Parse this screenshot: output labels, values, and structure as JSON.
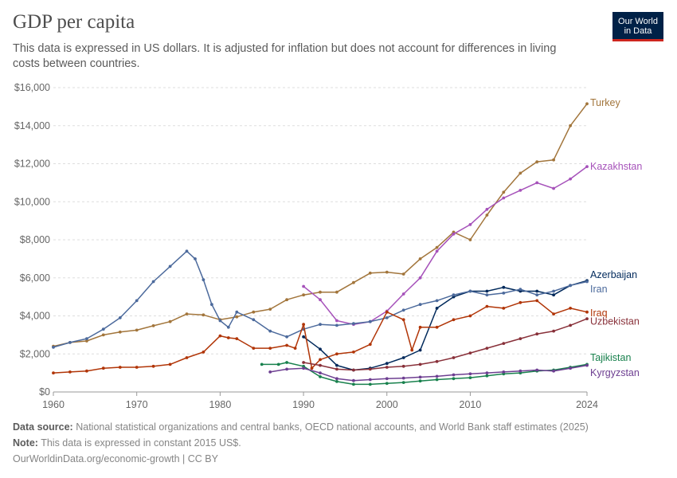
{
  "header": {
    "title": "GDP per capita",
    "subtitle": "This data is expressed in US dollars. It is adjusted for inflation but does not account for differences in living costs between countries.",
    "logo_line1": "Our World",
    "logo_line2": "in Data"
  },
  "footer": {
    "source_label": "Data source:",
    "source_text": "National statistical organizations and central banks, OECD national accounts, and World Bank staff estimates (2025)",
    "note_label": "Note:",
    "note_text": "This data is expressed in constant 2015 US$.",
    "credit": "OurWorldinData.org/economic-growth | CC BY"
  },
  "chart_data": {
    "type": "line",
    "xlim": [
      1960,
      2024
    ],
    "ylim": [
      0,
      16000
    ],
    "x_ticks": [
      1960,
      1970,
      1980,
      1990,
      2000,
      2010,
      2024
    ],
    "y_ticks": [
      0,
      2000,
      4000,
      6000,
      8000,
      10000,
      12000,
      14000,
      16000
    ],
    "y_tick_labels": [
      "$0",
      "$2,000",
      "$4,000",
      "$6,000",
      "$8,000",
      "$10,000",
      "$12,000",
      "$14,000",
      "$16,000"
    ],
    "grid": "horizontal dashed",
    "series": [
      {
        "name": "Turkey",
        "color": "#a2753b",
        "label_value": 15200,
        "x": [
          1960,
          1962,
          1964,
          1966,
          1968,
          1970,
          1972,
          1974,
          1976,
          1978,
          1980,
          1982,
          1984,
          1986,
          1988,
          1990,
          1992,
          1994,
          1996,
          1998,
          2000,
          2002,
          2004,
          2006,
          2008,
          2010,
          2012,
          2014,
          2016,
          2018,
          2020,
          2022,
          2024
        ],
        "y": [
          2400,
          2600,
          2680,
          3000,
          3150,
          3250,
          3480,
          3700,
          4100,
          4050,
          3800,
          3950,
          4200,
          4350,
          4850,
          5100,
          5250,
          5250,
          5750,
          6250,
          6300,
          6200,
          7000,
          7600,
          8400,
          8000,
          9300,
          10500,
          11500,
          12100,
          12200,
          14000,
          15150
        ]
      },
      {
        "name": "Kazakhstan",
        "color": "#a652ba",
        "label_value": 11850,
        "x": [
          1990,
          1992,
          1994,
          1996,
          1998,
          2000,
          2002,
          2004,
          2006,
          2008,
          2010,
          2012,
          2014,
          2016,
          2018,
          2020,
          2022,
          2024
        ],
        "y": [
          5550,
          4850,
          3750,
          3550,
          3700,
          4250,
          5150,
          6000,
          7400,
          8300,
          8800,
          9600,
          10200,
          10600,
          11000,
          10700,
          11200,
          11850
        ]
      },
      {
        "name": "Azerbaijan",
        "color": "#00295b",
        "label_value": 6150,
        "x": [
          1990,
          1992,
          1994,
          1996,
          1998,
          2000,
          2002,
          2004,
          2006,
          2008,
          2010,
          2012,
          2014,
          2016,
          2018,
          2020,
          2022,
          2024
        ],
        "y": [
          2900,
          2250,
          1400,
          1150,
          1250,
          1500,
          1800,
          2200,
          4400,
          5000,
          5300,
          5300,
          5500,
          5300,
          5300,
          5100,
          5600,
          5850
        ]
      },
      {
        "name": "Iran",
        "color": "#4c6a9c",
        "label_value": 5400,
        "x": [
          1960,
          1962,
          1964,
          1966,
          1968,
          1970,
          1972,
          1974,
          1976,
          1977,
          1978,
          1979,
          1980,
          1981,
          1982,
          1984,
          1986,
          1988,
          1990,
          1992,
          1994,
          1996,
          1998,
          2000,
          2002,
          2004,
          2006,
          2008,
          2010,
          2012,
          2014,
          2016,
          2018,
          2020,
          2022,
          2024
        ],
        "y": [
          2350,
          2600,
          2800,
          3300,
          3900,
          4800,
          5800,
          6600,
          7400,
          7000,
          5900,
          4600,
          3750,
          3400,
          4200,
          3800,
          3200,
          2900,
          3300,
          3550,
          3500,
          3600,
          3700,
          3900,
          4300,
          4600,
          4800,
          5100,
          5300,
          5100,
          5200,
          5400,
          5100,
          5300,
          5600,
          5800
        ]
      },
      {
        "name": "Iraq",
        "color": "#b13507",
        "label_value": 4150,
        "x": [
          1960,
          1962,
          1964,
          1966,
          1968,
          1970,
          1972,
          1974,
          1976,
          1978,
          1980,
          1981,
          1982,
          1984,
          1986,
          1988,
          1989,
          1990,
          1991,
          1992,
          1994,
          1996,
          1998,
          2000,
          2002,
          2003,
          2004,
          2006,
          2008,
          2010,
          2012,
          2014,
          2016,
          2018,
          2020,
          2022,
          2024
        ],
        "y": [
          1000,
          1050,
          1100,
          1250,
          1300,
          1300,
          1350,
          1450,
          1800,
          2100,
          2950,
          2850,
          2800,
          2300,
          2300,
          2450,
          2300,
          3550,
          1250,
          1700,
          2000,
          2100,
          2500,
          4200,
          3800,
          2200,
          3400,
          3400,
          3800,
          4000,
          4500,
          4400,
          4700,
          4800,
          4100,
          4400,
          4200
        ]
      },
      {
        "name": "Uzbekistan",
        "color": "#883039",
        "label_value": 3700,
        "x": [
          1990,
          1992,
          1994,
          1996,
          1998,
          2000,
          2002,
          2004,
          2006,
          2008,
          2010,
          2012,
          2014,
          2016,
          2018,
          2020,
          2022,
          2024
        ],
        "y": [
          1550,
          1400,
          1200,
          1150,
          1200,
          1300,
          1350,
          1450,
          1600,
          1800,
          2050,
          2300,
          2550,
          2800,
          3050,
          3200,
          3500,
          3850
        ]
      },
      {
        "name": "Tajikistan",
        "color": "#18814d",
        "label_value": 1800,
        "x": [
          1985,
          1987,
          1988,
          1990,
          1992,
          1994,
          1996,
          1998,
          2000,
          2002,
          2004,
          2006,
          2008,
          2010,
          2012,
          2014,
          2016,
          2018,
          2020,
          2022,
          2024
        ],
        "y": [
          1450,
          1450,
          1550,
          1350,
          800,
          550,
          400,
          400,
          450,
          500,
          580,
          650,
          700,
          750,
          850,
          950,
          1000,
          1100,
          1150,
          1300,
          1450
        ]
      },
      {
        "name": "Kyrgyzstan",
        "color": "#6d3e91",
        "label_value": 1000,
        "x": [
          1986,
          1988,
          1990,
          1992,
          1994,
          1996,
          1998,
          2000,
          2002,
          2004,
          2006,
          2008,
          2010,
          2012,
          2014,
          2016,
          2018,
          2020,
          2022,
          2024
        ],
        "y": [
          1050,
          1200,
          1250,
          1000,
          700,
          600,
          650,
          700,
          730,
          780,
          820,
          900,
          950,
          1000,
          1050,
          1100,
          1150,
          1100,
          1250,
          1400
        ]
      }
    ]
  }
}
